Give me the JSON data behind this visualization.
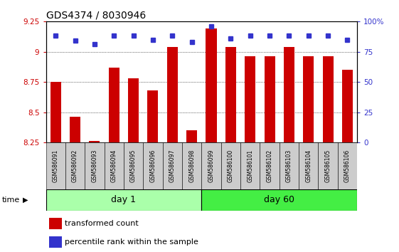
{
  "title": "GDS4374 / 8030946",
  "samples": [
    "GSM586091",
    "GSM586092",
    "GSM586093",
    "GSM586094",
    "GSM586095",
    "GSM586096",
    "GSM586097",
    "GSM586098",
    "GSM586099",
    "GSM586100",
    "GSM586101",
    "GSM586102",
    "GSM586103",
    "GSM586104",
    "GSM586105",
    "GSM586106"
  ],
  "bar_values": [
    8.75,
    8.46,
    8.26,
    8.87,
    8.78,
    8.68,
    9.04,
    8.35,
    9.19,
    9.04,
    8.96,
    8.96,
    9.04,
    8.96,
    8.96,
    8.85
  ],
  "dot_values": [
    88,
    84,
    81,
    88,
    88,
    85,
    88,
    83,
    96,
    86,
    88,
    88,
    88,
    88,
    88,
    85
  ],
  "day1_count": 8,
  "day60_count": 8,
  "ylim": [
    8.25,
    9.25
  ],
  "yticks": [
    8.25,
    8.5,
    8.75,
    9.0,
    9.25
  ],
  "ytick_labels": [
    "8.25",
    "8.5",
    "8.75",
    "9",
    "9.25"
  ],
  "right_yticks": [
    0,
    25,
    50,
    75,
    100
  ],
  "right_ytick_labels": [
    "0",
    "25",
    "50",
    "75",
    "100%"
  ],
  "bar_color": "#CC0000",
  "dot_color": "#3333CC",
  "day1_bg": "#AAFFAA",
  "day60_bg": "#44EE44",
  "sample_bg": "#CCCCCC",
  "title_fontsize": 10,
  "tick_fontsize": 7.5,
  "sample_fontsize": 5.5,
  "legend_fontsize": 8,
  "day_fontsize": 9
}
